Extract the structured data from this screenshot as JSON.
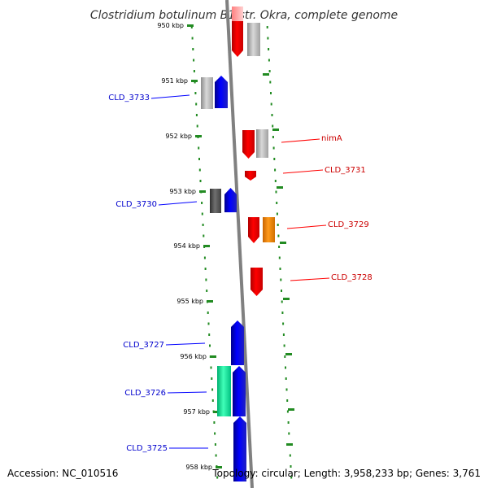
{
  "title": "Clostridium botulinum B1 str. Okra, complete genome",
  "footer": {
    "accession": "Accession: NC_010516",
    "topology": "Topology: circular; Length: 3,958,233 bp; Genes: 3,761"
  },
  "colors": {
    "forward": "#0000ff",
    "reverse": "#ff0000",
    "orange": "#ff8c00",
    "grey": "#b4b4b4",
    "dark_grey": "#5a5a5a",
    "green": "#00e69b",
    "ruler": "#228b22",
    "backbone": "#808080"
  },
  "ticks": [
    "950 kbp",
    "951 kbp",
    "952 kbp",
    "953 kbp",
    "954 kbp",
    "955 kbp",
    "956 kbp",
    "957 kbp",
    "958 kbp"
  ],
  "labels": {
    "left": [
      "CLD_3733",
      "CLD_3730",
      "CLD_3727",
      "CLD_3726",
      "CLD_3725"
    ],
    "right": [
      "nimA",
      "CLD_3731",
      "CLD_3729",
      "CLD_3728"
    ]
  }
}
